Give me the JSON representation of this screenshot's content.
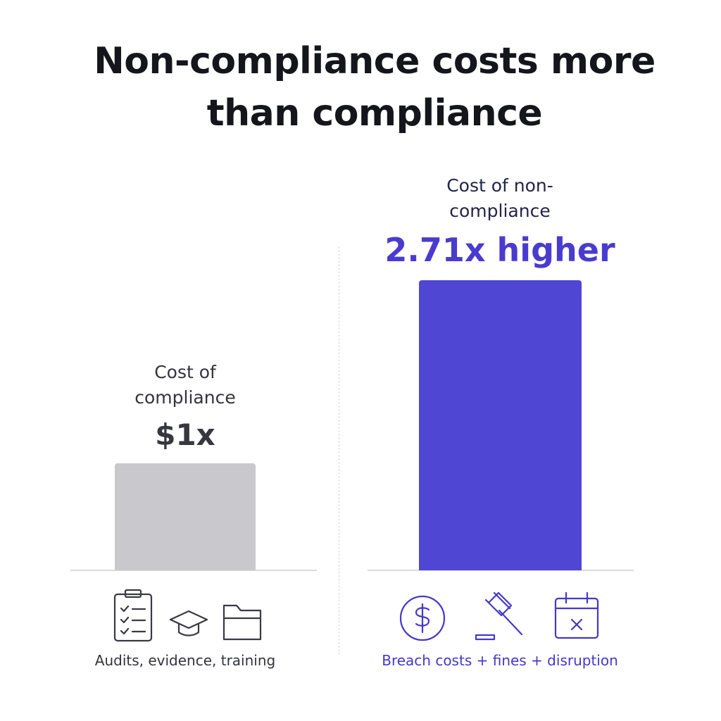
{
  "chart_data": {
    "type": "bar",
    "title": "Non-compliance costs more than compliance",
    "categories": [
      "Cost of compliance",
      "Cost of non-compliance"
    ],
    "values": [
      1,
      2.71
    ],
    "value_labels": [
      "$1x",
      "2.71x higher"
    ],
    "colors": [
      "#c9c9cd",
      "#5046d4"
    ],
    "captions": [
      "Audits, evidence, training",
      "Breach costs + fines + disruption"
    ]
  }
}
